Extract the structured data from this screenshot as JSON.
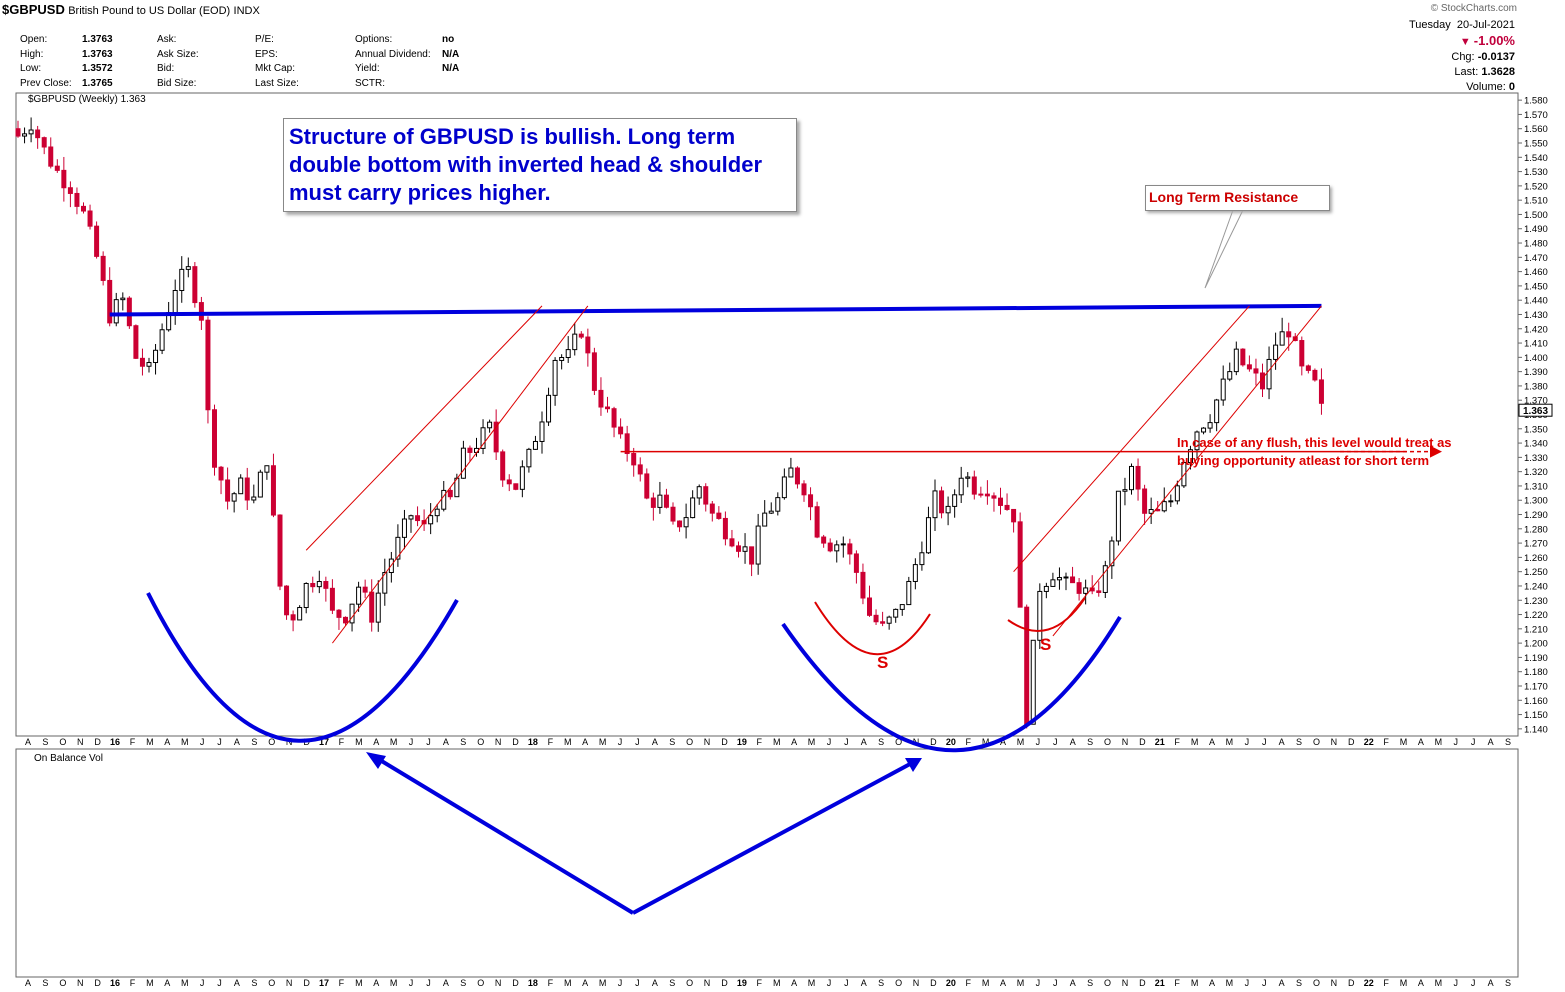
{
  "header": {
    "symbol": "$GBPUSD",
    "name": "British Pound to US Dollar (EOD)",
    "exchange": "INDX",
    "watermark": "© StockCharts.com",
    "day": "Tuesday",
    "date": "20-Jul-2021",
    "change_pct": "-1.00%",
    "chg_label": "Chg:",
    "chg_value": "-0.0137",
    "last_label": "Last:",
    "last_value": "1.3628",
    "volume_label": "Volume:",
    "volume_value": "0"
  },
  "stats": {
    "col1": [
      {
        "label": "Open:",
        "value": "1.3763"
      },
      {
        "label": "High:",
        "value": "1.3763"
      },
      {
        "label": "Low:",
        "value": "1.3572"
      },
      {
        "label": "Prev Close:",
        "value": "1.3765"
      }
    ],
    "col2": [
      {
        "label": "Ask:",
        "value": ""
      },
      {
        "label": "Ask Size:",
        "value": ""
      },
      {
        "label": "Bid:",
        "value": ""
      },
      {
        "label": "Bid Size:",
        "value": ""
      }
    ],
    "col3": [
      {
        "label": "P/E:",
        "value": ""
      },
      {
        "label": "EPS:",
        "value": ""
      },
      {
        "label": "Mkt Cap:",
        "value": ""
      },
      {
        "label": "Last Size:",
        "value": ""
      }
    ],
    "col4": [
      {
        "label": "Options:",
        "value": "no"
      },
      {
        "label": "Annual Dividend:",
        "value": "N/A"
      },
      {
        "label": "Yield:",
        "value": "N/A"
      },
      {
        "label": "SCTR:",
        "value": ""
      }
    ]
  },
  "chart_data": {
    "type": "candlestick",
    "legend_price": "$GBPUSD (Weekly) 1.363",
    "legend_volume": "On Balance Vol",
    "ylim": [
      1.135,
      1.585
    ],
    "y_ticks": [
      "1.580",
      "1.570",
      "1.560",
      "1.550",
      "1.540",
      "1.530",
      "1.520",
      "1.510",
      "1.500",
      "1.490",
      "1.480",
      "1.470",
      "1.460",
      "1.450",
      "1.440",
      "1.430",
      "1.420",
      "1.410",
      "1.400",
      "1.390",
      "1.380",
      "1.370",
      "1.360",
      "1.350",
      "1.340",
      "1.330",
      "1.320",
      "1.310",
      "1.300",
      "1.290",
      "1.280",
      "1.270",
      "1.260",
      "1.250",
      "1.240",
      "1.230",
      "1.220",
      "1.210",
      "1.200",
      "1.190",
      "1.180",
      "1.170",
      "1.160",
      "1.150",
      "1.140"
    ],
    "last_price_label": "1.363",
    "x_month_labels": [
      "A",
      "S",
      "O",
      "N",
      "D",
      "16",
      "F",
      "M",
      "A",
      "M",
      "J",
      "J",
      "A",
      "S",
      "O",
      "N",
      "D",
      "17",
      "F",
      "M",
      "A",
      "M",
      "J",
      "J",
      "A",
      "S",
      "O",
      "N",
      "D",
      "18",
      "F",
      "M",
      "A",
      "M",
      "J",
      "J",
      "A",
      "S",
      "O",
      "N",
      "D",
      "19",
      "F",
      "M",
      "A",
      "M",
      "J",
      "J",
      "A",
      "S",
      "O",
      "N",
      "D",
      "20",
      "F",
      "M",
      "A",
      "M",
      "J",
      "J",
      "A",
      "S",
      "O",
      "N",
      "D",
      "21",
      "F",
      "M",
      "A",
      "M",
      "J",
      "J",
      "A",
      "S",
      "O",
      "N",
      "D",
      "22",
      "F",
      "M",
      "A",
      "M",
      "J",
      "J",
      "A",
      "S"
    ],
    "price_path": [
      [
        0,
        1.555
      ],
      [
        2,
        1.565
      ],
      [
        4,
        1.545
      ],
      [
        6,
        1.53
      ],
      [
        8,
        1.52
      ],
      [
        10,
        1.5
      ],
      [
        12,
        1.47
      ],
      [
        14,
        1.43
      ],
      [
        16,
        1.44
      ],
      [
        18,
        1.4
      ],
      [
        20,
        1.39
      ],
      [
        22,
        1.42
      ],
      [
        24,
        1.45
      ],
      [
        26,
        1.46
      ],
      [
        28,
        1.43
      ],
      [
        29,
        1.36
      ],
      [
        30,
        1.33
      ],
      [
        32,
        1.3
      ],
      [
        34,
        1.31
      ],
      [
        36,
        1.3
      ],
      [
        38,
        1.33
      ],
      [
        40,
        1.24
      ],
      [
        41,
        1.22
      ],
      [
        42,
        1.22
      ],
      [
        44,
        1.24
      ],
      [
        46,
        1.25
      ],
      [
        48,
        1.22
      ],
      [
        50,
        1.22
      ],
      [
        52,
        1.24
      ],
      [
        54,
        1.22
      ],
      [
        56,
        1.25
      ],
      [
        58,
        1.27
      ],
      [
        60,
        1.29
      ],
      [
        62,
        1.28
      ],
      [
        64,
        1.3
      ],
      [
        66,
        1.3
      ],
      [
        68,
        1.33
      ],
      [
        70,
        1.34
      ],
      [
        72,
        1.35
      ],
      [
        74,
        1.32
      ],
      [
        76,
        1.31
      ],
      [
        78,
        1.33
      ],
      [
        80,
        1.36
      ],
      [
        82,
        1.4
      ],
      [
        84,
        1.4
      ],
      [
        86,
        1.42
      ],
      [
        88,
        1.38
      ],
      [
        90,
        1.36
      ],
      [
        92,
        1.34
      ],
      [
        94,
        1.33
      ],
      [
        96,
        1.3
      ],
      [
        98,
        1.3
      ],
      [
        100,
        1.28
      ],
      [
        102,
        1.29
      ],
      [
        104,
        1.31
      ],
      [
        106,
        1.29
      ],
      [
        108,
        1.28
      ],
      [
        110,
        1.27
      ],
      [
        112,
        1.26
      ],
      [
        114,
        1.29
      ],
      [
        116,
        1.3
      ],
      [
        118,
        1.32
      ],
      [
        120,
        1.31
      ],
      [
        122,
        1.28
      ],
      [
        124,
        1.27
      ],
      [
        126,
        1.27
      ],
      [
        128,
        1.25
      ],
      [
        130,
        1.22
      ],
      [
        132,
        1.21
      ],
      [
        134,
        1.22
      ],
      [
        136,
        1.24
      ],
      [
        138,
        1.27
      ],
      [
        140,
        1.3
      ],
      [
        142,
        1.29
      ],
      [
        144,
        1.32
      ],
      [
        146,
        1.31
      ],
      [
        148,
        1.31
      ],
      [
        150,
        1.3
      ],
      [
        152,
        1.29
      ],
      [
        154,
        1.15
      ],
      [
        156,
        1.24
      ],
      [
        158,
        1.25
      ],
      [
        160,
        1.24
      ],
      [
        162,
        1.24
      ],
      [
        164,
        1.23
      ],
      [
        166,
        1.25
      ],
      [
        168,
        1.3
      ],
      [
        170,
        1.32
      ],
      [
        172,
        1.29
      ],
      [
        174,
        1.29
      ],
      [
        176,
        1.3
      ],
      [
        178,
        1.33
      ],
      [
        180,
        1.35
      ],
      [
        182,
        1.36
      ],
      [
        184,
        1.38
      ],
      [
        186,
        1.4
      ],
      [
        188,
        1.39
      ],
      [
        190,
        1.38
      ],
      [
        192,
        1.41
      ],
      [
        194,
        1.42
      ],
      [
        196,
        1.39
      ],
      [
        198,
        1.38
      ],
      [
        199,
        1.363
      ]
    ],
    "trend_lines": [
      {
        "type": "resistance",
        "from": [
          14,
          1.43
        ],
        "to": [
          199,
          1.436
        ]
      },
      {
        "type": "support-dashed",
        "from": [
          92,
          1.334
        ],
        "to": [
          212,
          1.334
        ]
      },
      {
        "type": "channel",
        "from": [
          44,
          1.265
        ],
        "to": [
          80,
          1.436
        ]
      },
      {
        "type": "channel",
        "from": [
          48,
          1.2
        ],
        "to": [
          87,
          1.436
        ]
      },
      {
        "type": "channel",
        "from": [
          152,
          1.25
        ],
        "to": [
          188,
          1.436
        ]
      },
      {
        "type": "channel",
        "from": [
          158,
          1.205
        ],
        "to": [
          199,
          1.436
        ]
      }
    ],
    "annotations": {
      "structure_note": "Structure of GBPUSD is bullish. Long term double bottom with inverted head & shoulder must carry prices higher.",
      "resistance_label": "Long Term Resistance",
      "flush_note": "In case of any flush, this level would treat as buying opportunity atleast for short term",
      "shoulder_left": "S",
      "shoulder_right": "S"
    },
    "colors": {
      "up": "#000000",
      "down": "#cc0033",
      "resistance": "#0000dd",
      "support": "#dd0000",
      "channel": "#dd0000",
      "arcs": "#0000dd"
    },
    "grid": false
  }
}
